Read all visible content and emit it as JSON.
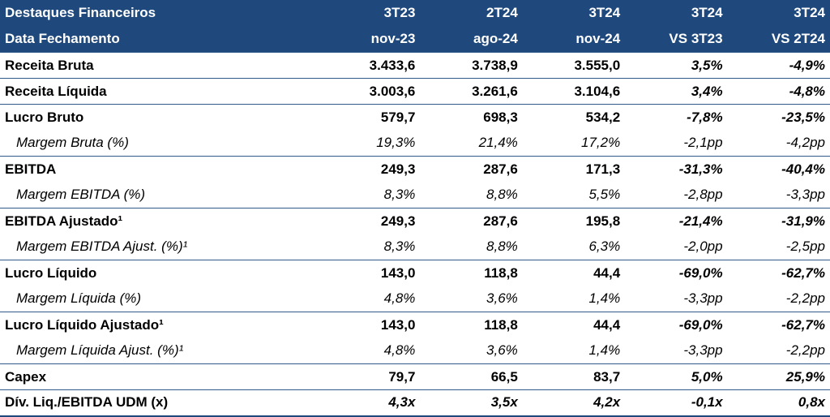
{
  "header": {
    "row1": [
      "Destaques Financeiros",
      "3T23",
      "2T24",
      "3T24",
      "3T24",
      "3T24"
    ],
    "row2": [
      "Data Fechamento",
      "nov-23",
      "ago-24",
      "nov-24",
      "VS 3T23",
      "VS 2T24"
    ]
  },
  "rows": [
    {
      "type": "main",
      "label": "Receita Bruta",
      "values": [
        "3.433,6",
        "3.738,9",
        "3.555,0",
        "3,5%",
        "-4,9%"
      ]
    },
    {
      "type": "main",
      "label": "Receita Líquida",
      "values": [
        "3.003,6",
        "3.261,6",
        "3.104,6",
        "3,4%",
        "-4,8%"
      ]
    },
    {
      "type": "main",
      "label": "Lucro Bruto",
      "values": [
        "579,7",
        "698,3",
        "534,2",
        "-7,8%",
        "-23,5%"
      ]
    },
    {
      "type": "sub",
      "label": "Margem Bruta (%)",
      "values": [
        "19,3%",
        "21,4%",
        "17,2%",
        "-2,1pp",
        "-4,2pp"
      ]
    },
    {
      "type": "main",
      "label": "EBITDA",
      "values": [
        "249,3",
        "287,6",
        "171,3",
        "-31,3%",
        "-40,4%"
      ]
    },
    {
      "type": "sub",
      "label": "Margem EBITDA (%)",
      "values": [
        "8,3%",
        "8,8%",
        "5,5%",
        "-2,8pp",
        "-3,3pp"
      ]
    },
    {
      "type": "main",
      "label": "EBITDA Ajustado¹",
      "values": [
        "249,3",
        "287,6",
        "195,8",
        "-21,4%",
        "-31,9%"
      ]
    },
    {
      "type": "sub",
      "label": "Margem EBITDA Ajust. (%)¹",
      "values": [
        "8,3%",
        "8,8%",
        "6,3%",
        "-2,0pp",
        "-2,5pp"
      ]
    },
    {
      "type": "main",
      "label": "Lucro Líquido",
      "values": [
        "143,0",
        "118,8",
        "44,4",
        "-69,0%",
        "-62,7%"
      ]
    },
    {
      "type": "sub",
      "label": "Margem Líquida (%)",
      "values": [
        "4,8%",
        "3,6%",
        "1,4%",
        "-3,3pp",
        "-2,2pp"
      ]
    },
    {
      "type": "main",
      "label": "Lucro Líquido Ajustado¹",
      "values": [
        "143,0",
        "118,8",
        "44,4",
        "-69,0%",
        "-62,7%"
      ]
    },
    {
      "type": "sub",
      "label": "Margem Líquida Ajust. (%)¹",
      "values": [
        "4,8%",
        "3,6%",
        "1,4%",
        "-3,3pp",
        "-2,2pp"
      ]
    },
    {
      "type": "main",
      "label": "Capex",
      "values": [
        "79,7",
        "66,5",
        "83,7",
        "5,0%",
        "25,9%"
      ]
    },
    {
      "type": "main ratio",
      "label": "Dív. Liq./EBITDA UDM (x)",
      "values": [
        "4,3x",
        "3,5x",
        "4,2x",
        "-0,1x",
        "0,8x"
      ]
    }
  ]
}
